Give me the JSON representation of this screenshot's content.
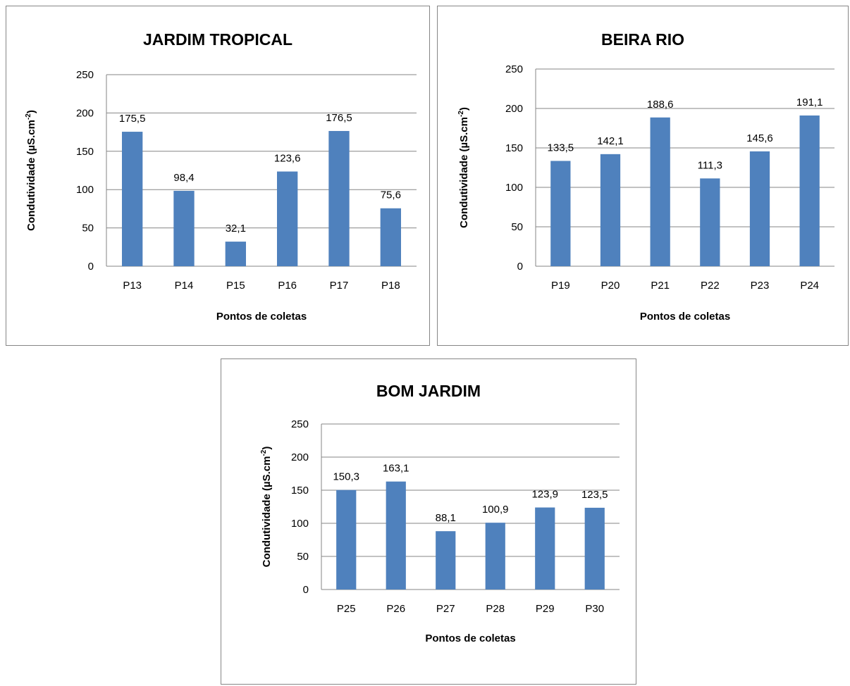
{
  "chart_data": [
    {
      "type": "bar",
      "title": "JARDIM TROPICAL",
      "xlabel": "Pontos de coletas",
      "ylabel": "Condutividade  (µS.cm",
      "ylabel_sup": "-2",
      "ylabel_close": ")",
      "categories": [
        "P13",
        "P14",
        "P15",
        "P16",
        "P17",
        "P18"
      ],
      "values": [
        175.5,
        98.4,
        32.1,
        123.6,
        176.5,
        75.6
      ],
      "value_labels": [
        "175,5",
        "98,4",
        "32,1",
        "123,6",
        "176,5",
        "75,6"
      ],
      "ylim": [
        0,
        250
      ],
      "yticks": [
        0,
        50,
        100,
        150,
        200,
        250
      ],
      "grid": true,
      "legend": "none",
      "bar_color": "#4F81BD"
    },
    {
      "type": "bar",
      "title": "BEIRA RIO",
      "xlabel": "Pontos de coletas",
      "ylabel": "Condutividade  (µS.cm",
      "ylabel_sup": "-2",
      "ylabel_close": ")",
      "categories": [
        "P19",
        "P20",
        "P21",
        "P22",
        "P23",
        "P24"
      ],
      "values": [
        133.5,
        142.1,
        188.6,
        111.3,
        145.6,
        191.1
      ],
      "value_labels": [
        "133,5",
        "142,1",
        "188,6",
        "111,3",
        "145,6",
        "191,1"
      ],
      "ylim": [
        0,
        250
      ],
      "yticks": [
        0,
        50,
        100,
        150,
        200,
        250
      ],
      "grid": true,
      "legend": "none",
      "bar_color": "#4F81BD"
    },
    {
      "type": "bar",
      "title": "BOM JARDIM",
      "xlabel": "Pontos de coletas",
      "ylabel": "Condutividade  (µS.cm",
      "ylabel_sup": "-2",
      "ylabel_close": ")",
      "categories": [
        "P25",
        "P26",
        "P27",
        "P28",
        "P29",
        "P30"
      ],
      "values": [
        150.3,
        163.1,
        88.1,
        100.9,
        123.9,
        123.5
      ],
      "value_labels": [
        "150,3",
        "163,1",
        "88,1",
        "100,9",
        "123,9",
        "123,5"
      ],
      "ylim": [
        0,
        250
      ],
      "yticks": [
        0,
        50,
        100,
        150,
        200,
        250
      ],
      "grid": true,
      "legend": "none",
      "bar_color": "#4F81BD"
    }
  ]
}
